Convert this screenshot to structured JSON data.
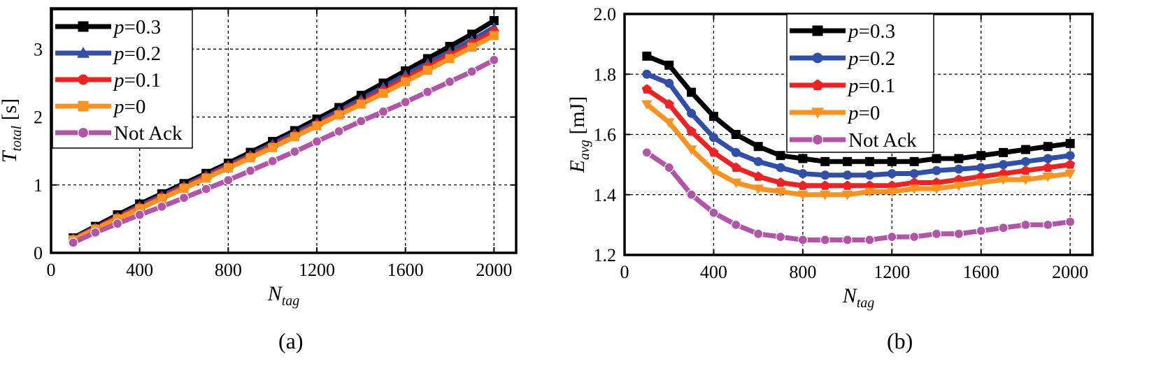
{
  "chart_data": [
    {
      "type": "line",
      "panel_label": "(a)",
      "xlabel": {
        "main": "N",
        "sub": "tag"
      },
      "ylabel": {
        "main": "T",
        "sub": "total",
        "suffix": " [s]"
      },
      "xlim": [
        0,
        2100
      ],
      "ylim": [
        0,
        3.6
      ],
      "xticks": [
        0,
        400,
        800,
        1200,
        1600,
        2000
      ],
      "xtick_labels": [
        "0",
        "400",
        "800",
        "1200",
        "1600",
        "2000"
      ],
      "yticks": [
        0,
        1,
        2,
        3
      ],
      "ytick_labels": [
        "0",
        "1",
        "2",
        "3"
      ],
      "grid": true,
      "legend_position": "top-left",
      "x": [
        100,
        200,
        300,
        400,
        500,
        600,
        700,
        800,
        900,
        1000,
        1100,
        1200,
        1300,
        1400,
        1500,
        1600,
        1700,
        1800,
        1900,
        2000
      ],
      "series": [
        {
          "name": "p=0.3",
          "prefix": "p",
          "suffix": "=0.3",
          "color": "#000000",
          "marker": "square",
          "values": [
            0.22,
            0.39,
            0.56,
            0.72,
            0.87,
            1.02,
            1.17,
            1.32,
            1.48,
            1.64,
            1.8,
            1.97,
            2.14,
            2.32,
            2.5,
            2.68,
            2.86,
            3.04,
            3.22,
            3.42
          ]
        },
        {
          "name": "p=0.2",
          "prefix": "p",
          "suffix": "=0.2",
          "color": "#2f4fa8",
          "marker": "triangle-up",
          "values": [
            0.21,
            0.37,
            0.53,
            0.69,
            0.84,
            0.99,
            1.14,
            1.29,
            1.44,
            1.6,
            1.76,
            1.92,
            2.09,
            2.26,
            2.44,
            2.62,
            2.79,
            2.96,
            3.13,
            3.32
          ]
        },
        {
          "name": "p=0.1",
          "prefix": "p",
          "suffix": "=0.1",
          "color": "#ee2222",
          "marker": "circle",
          "values": [
            0.2,
            0.36,
            0.52,
            0.67,
            0.82,
            0.97,
            1.12,
            1.27,
            1.42,
            1.57,
            1.73,
            1.89,
            2.05,
            2.22,
            2.39,
            2.57,
            2.74,
            2.91,
            3.08,
            3.26
          ]
        },
        {
          "name": "p=0",
          "prefix": "p",
          "suffix": "=0",
          "color": "#f7931e",
          "marker": "square",
          "values": [
            0.19,
            0.35,
            0.5,
            0.65,
            0.8,
            0.95,
            1.1,
            1.25,
            1.4,
            1.55,
            1.71,
            1.87,
            2.03,
            2.19,
            2.35,
            2.52,
            2.69,
            2.86,
            3.03,
            3.2
          ]
        },
        {
          "name": "Not Ack",
          "prefix": "",
          "suffix": "Not Ack",
          "color": "#b254a8",
          "marker": "circle",
          "values": [
            0.15,
            0.3,
            0.43,
            0.56,
            0.68,
            0.81,
            0.94,
            1.07,
            1.21,
            1.35,
            1.49,
            1.64,
            1.79,
            1.94,
            2.08,
            2.22,
            2.37,
            2.52,
            2.67,
            2.84
          ]
        }
      ]
    },
    {
      "type": "line",
      "panel_label": "(b)",
      "xlabel": {
        "main": "N",
        "sub": "tag"
      },
      "ylabel": {
        "main": "E",
        "sub": "avg",
        "suffix": " [mJ]"
      },
      "xlim": [
        0,
        2100
      ],
      "ylim": [
        1.2,
        2.0
      ],
      "xticks": [
        0,
        400,
        800,
        1200,
        1600,
        2000
      ],
      "xtick_labels": [
        "0",
        "400",
        "800",
        "1200",
        "1600",
        "2000"
      ],
      "yticks": [
        1.2,
        1.4,
        1.6,
        1.8,
        2.0
      ],
      "ytick_labels": [
        "1.2",
        "1.4",
        "1.6",
        "1.8",
        "2.0"
      ],
      "grid": true,
      "legend_position": "top-center",
      "x": [
        100,
        200,
        300,
        400,
        500,
        600,
        700,
        800,
        900,
        1000,
        1100,
        1200,
        1300,
        1400,
        1500,
        1600,
        1700,
        1800,
        1900,
        2000
      ],
      "series": [
        {
          "name": "p=0.3",
          "prefix": "p",
          "suffix": "=0.3",
          "color": "#000000",
          "marker": "square",
          "values": [
            1.86,
            1.83,
            1.74,
            1.66,
            1.6,
            1.56,
            1.53,
            1.52,
            1.51,
            1.51,
            1.51,
            1.51,
            1.51,
            1.52,
            1.52,
            1.53,
            1.54,
            1.55,
            1.56,
            1.57
          ]
        },
        {
          "name": "p=0.2",
          "prefix": "p",
          "suffix": "=0.2",
          "color": "#2f4fa8",
          "marker": "circle",
          "values": [
            1.8,
            1.77,
            1.67,
            1.59,
            1.54,
            1.51,
            1.49,
            1.47,
            1.465,
            1.465,
            1.465,
            1.47,
            1.47,
            1.48,
            1.485,
            1.49,
            1.5,
            1.51,
            1.52,
            1.53
          ]
        },
        {
          "name": "p=0.1",
          "prefix": "p",
          "suffix": "=0.1",
          "color": "#ee2222",
          "marker": "pentagon",
          "values": [
            1.75,
            1.7,
            1.61,
            1.54,
            1.49,
            1.46,
            1.44,
            1.43,
            1.43,
            1.43,
            1.43,
            1.43,
            1.44,
            1.44,
            1.45,
            1.46,
            1.47,
            1.48,
            1.49,
            1.5
          ]
        },
        {
          "name": "p=0",
          "prefix": "p",
          "suffix": "=0",
          "color": "#f7931e",
          "marker": "triangle-down",
          "values": [
            1.7,
            1.64,
            1.55,
            1.48,
            1.44,
            1.42,
            1.41,
            1.4,
            1.4,
            1.4,
            1.41,
            1.41,
            1.42,
            1.42,
            1.43,
            1.44,
            1.45,
            1.45,
            1.46,
            1.47
          ]
        },
        {
          "name": "Not Ack",
          "prefix": "",
          "suffix": "Not Ack",
          "color": "#b254a8",
          "marker": "circle",
          "values": [
            1.54,
            1.49,
            1.4,
            1.34,
            1.3,
            1.27,
            1.26,
            1.25,
            1.25,
            1.25,
            1.25,
            1.26,
            1.26,
            1.27,
            1.27,
            1.28,
            1.29,
            1.3,
            1.3,
            1.31
          ]
        }
      ]
    }
  ]
}
